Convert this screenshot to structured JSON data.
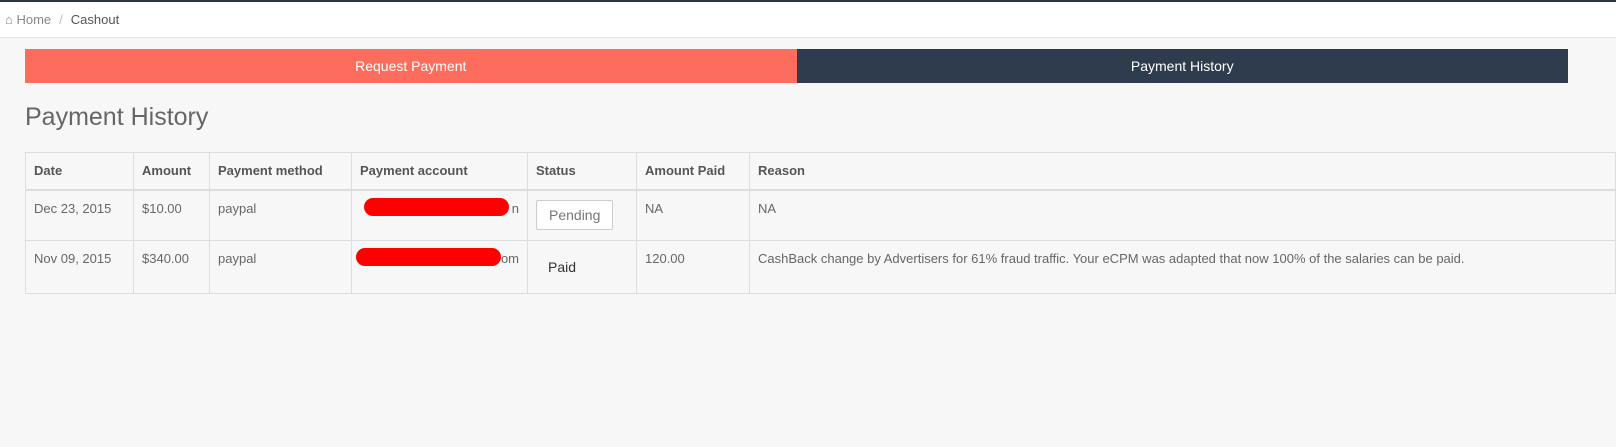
{
  "breadcrumb": {
    "home": "Home",
    "current": "Cashout"
  },
  "tabs": {
    "request": "Request Payment",
    "history": "Payment History"
  },
  "page_title": "Payment History",
  "table": {
    "headers": [
      "Date",
      "Amount",
      "Payment method",
      "Payment account",
      "Status",
      "Amount Paid",
      "Reason"
    ],
    "rows": [
      {
        "date": "Dec 23, 2015",
        "amount": "$10.00",
        "method": "paypal",
        "account_suffix": "n",
        "status": "Pending",
        "paid": "NA",
        "reason": "NA"
      },
      {
        "date": "Nov 09, 2015",
        "amount": "$340.00",
        "method": "paypal",
        "account_suffix": "om",
        "status": "Paid",
        "paid": "120.00",
        "reason": "CashBack change by Advertisers for 61% fraud traffic. Your eCPM was adapted that now 100% of the salaries can be paid."
      }
    ]
  },
  "colors": {
    "request_tab": "#fc6d5e",
    "history_tab": "#2e3c4d",
    "redaction": "#ff0000"
  }
}
